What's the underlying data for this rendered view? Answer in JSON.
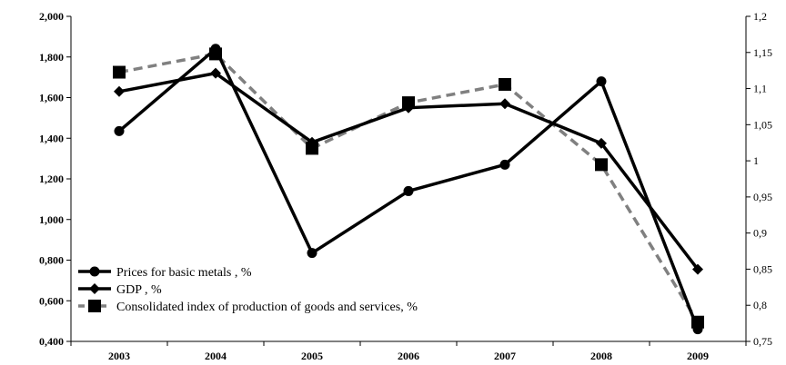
{
  "chart_data": {
    "type": "line",
    "title": "",
    "xlabel": "",
    "ylabel": "",
    "categories": [
      "2003",
      "2004",
      "2005",
      "2006",
      "2007",
      "2008",
      "2009"
    ],
    "y_left": {
      "range": [
        0.4,
        2.0
      ],
      "ticks": [
        "2,000",
        "1,800",
        "1,600",
        "1,400",
        "1,200",
        "1,000",
        "0,800",
        "0,600",
        "0,400"
      ],
      "tick_values": [
        2.0,
        1.8,
        1.6,
        1.4,
        1.2,
        1.0,
        0.8,
        0.6,
        0.4
      ]
    },
    "y_right": {
      "range": [
        0.75,
        1.2
      ],
      "ticks": [
        "1,2",
        "1,15",
        "1,1",
        "1,05",
        "1",
        "0,95",
        "0,9",
        "0,85",
        "0,8",
        "0,75"
      ],
      "tick_values": [
        1.2,
        1.15,
        1.1,
        1.05,
        1.0,
        0.95,
        0.9,
        0.85,
        0.8,
        0.75
      ]
    },
    "series": [
      {
        "name": "Prices for basic metals , %",
        "axis": "left",
        "marker": "circle",
        "style": "solid",
        "color": "#000000",
        "values": [
          1.435,
          1.84,
          0.835,
          1.14,
          1.27,
          1.68,
          0.46
        ]
      },
      {
        "name": "GDP , %",
        "axis": "left",
        "marker": "diamond",
        "style": "solid",
        "color": "#000000",
        "values": [
          1.63,
          1.72,
          1.38,
          1.55,
          1.57,
          1.375,
          0.755
        ]
      },
      {
        "name": "Consolidated index of production of goods and services, %",
        "axis": "left",
        "marker": "square",
        "style": "dashed",
        "color": "#808080",
        "values": [
          1.725,
          1.815,
          1.35,
          1.575,
          1.665,
          1.27,
          0.495
        ]
      }
    ],
    "legend_position": "bottom-left",
    "grid": false
  }
}
